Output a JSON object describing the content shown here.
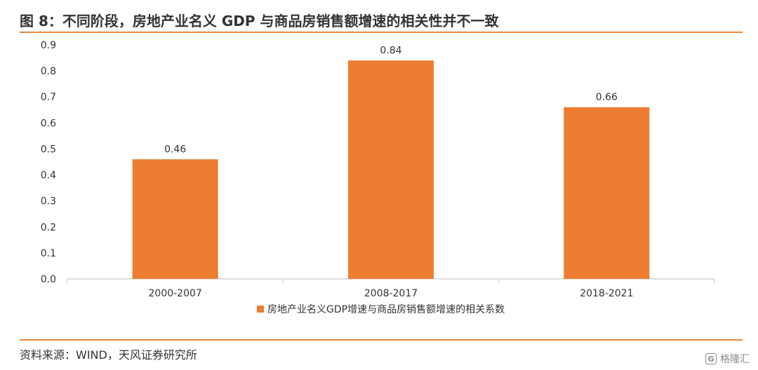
{
  "figure": {
    "title": "图 8：不同阶段，房地产业名义 GDP 与商品房销售额增速的相关性并不一致",
    "source": "资料来源：WIND，天风证券研究所",
    "watermark_text": "格隆汇",
    "watermark_icon": "G"
  },
  "colors": {
    "bar": "#ed7d31",
    "accent_rule": "#e8883a",
    "axis": "#bfbfbf",
    "text": "#333333"
  },
  "chart_data": {
    "type": "bar",
    "categories": [
      "2000-2007",
      "2008-2017",
      "2018-2021"
    ],
    "series": [
      {
        "name": "房地产业名义GDP增速与商品房销售额增速的相关系数",
        "values": [
          0.46,
          0.84,
          0.66
        ]
      }
    ],
    "data_labels": [
      "0.46",
      "0.84",
      "0.66"
    ],
    "ylim": [
      0,
      0.9
    ],
    "yticks": [
      "0.0",
      "0.1",
      "0.2",
      "0.3",
      "0.4",
      "0.5",
      "0.6",
      "0.7",
      "0.8",
      "0.9"
    ],
    "grid": false,
    "legend_position": "bottom-center"
  }
}
